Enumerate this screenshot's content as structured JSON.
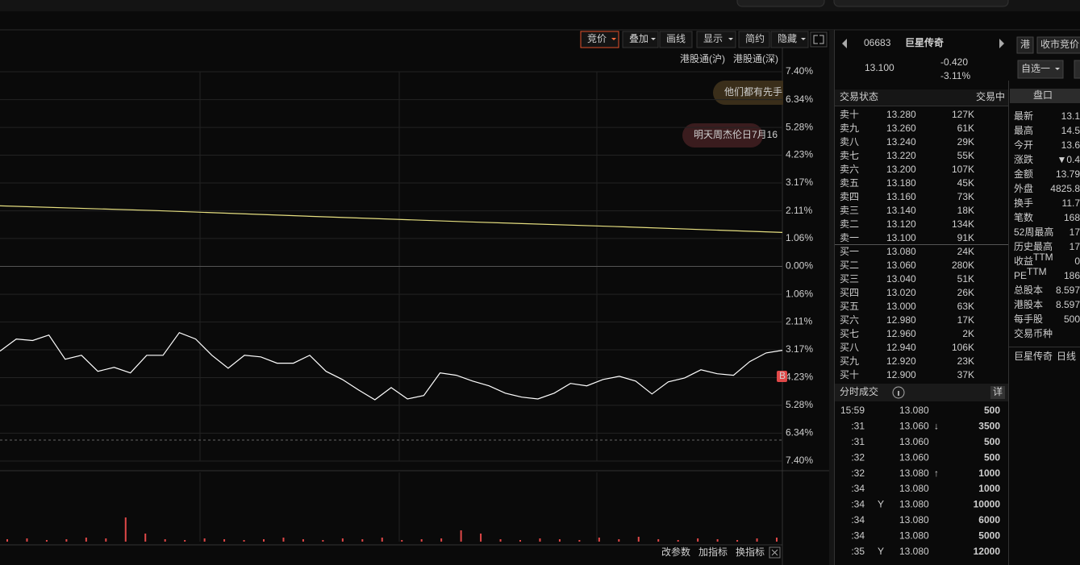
{
  "chart": {
    "toolbar": [
      {
        "label": "竞价",
        "caret": true,
        "active": true
      },
      {
        "label": "叠加",
        "caret": true
      },
      {
        "label": "画线"
      },
      {
        "label": "显示",
        "caret": true
      },
      {
        "label": "简约"
      },
      {
        "label": "隐藏",
        "caret": true
      }
    ],
    "channels": [
      "港股通(沪)",
      "港股通(深)"
    ],
    "notices": [
      {
        "text": "他们都有先手",
        "color": "#e0b060",
        "bg": "#3a2e1a"
      },
      {
        "text": "明天周杰伦日7月16",
        "color": "#ff6b6b",
        "bg": "#3a1c1e"
      }
    ],
    "ylim": [
      -7.4,
      7.4
    ],
    "yticks": [
      {
        "value": 7.4,
        "label": "7.40%"
      },
      {
        "value": 6.34,
        "label": "6.34%"
      },
      {
        "value": 5.28,
        "label": "5.28%"
      },
      {
        "value": 4.23,
        "label": "4.23%"
      },
      {
        "value": 3.17,
        "label": "3.17%"
      },
      {
        "value": 2.11,
        "label": "2.11%"
      },
      {
        "value": 1.06,
        "label": "1.06%"
      },
      {
        "value": 0,
        "label": "0.00%"
      },
      {
        "value": -1.06,
        "label": "1.06%"
      },
      {
        "value": -2.11,
        "label": "2.11%"
      },
      {
        "value": -3.17,
        "label": "3.17%"
      },
      {
        "value": -4.23,
        "label": "4.23%"
      },
      {
        "value": -5.28,
        "label": "5.28%"
      },
      {
        "value": -6.34,
        "label": "6.34%"
      },
      {
        "value": -7.4,
        "label": "7.40%"
      }
    ],
    "price_line": {
      "color": "#ffffff",
      "values": [
        -3.22,
        -2.76,
        -2.82,
        -2.61,
        -3.53,
        -3.38,
        -3.99,
        -3.84,
        -4.05,
        -3.38,
        -3.38,
        -2.52,
        -2.76,
        -3.38,
        -3.87,
        -3.38,
        -3.44,
        -3.68,
        -3.68,
        -3.38,
        -3.99,
        -4.3,
        -4.7,
        -5.07,
        -4.61,
        -5.04,
        -4.91,
        -4.05,
        -4.14,
        -4.36,
        -4.54,
        -4.82,
        -4.97,
        -5.04,
        -4.82,
        -4.45,
        -4.54,
        -4.3,
        -4.18,
        -4.36,
        -4.85,
        -4.39,
        -4.24,
        -3.93,
        -4.08,
        -4.14,
        -3.62,
        -3.29,
        -3.19
      ]
    },
    "avg_line": {
      "color": "#e6df80",
      "values": [
        2.3,
        2.12,
        1.9,
        1.69,
        1.5,
        1.29
      ]
    },
    "marker": "B",
    "volume": {
      "color": "#e04848",
      "ylim": [
        0,
        80
      ],
      "values": [
        3,
        4,
        2,
        3,
        5,
        4,
        30,
        10,
        3,
        2,
        4,
        3,
        2,
        3,
        5,
        3,
        2,
        4,
        3,
        5,
        2,
        3,
        4,
        14,
        10,
        3,
        2,
        4,
        3,
        2,
        5,
        3,
        6,
        3,
        2,
        4,
        3,
        2,
        4,
        5
      ]
    },
    "footer": [
      "改参数",
      "加指标",
      "换指标"
    ]
  },
  "quote": {
    "code": "06683",
    "name": "巨星传奇",
    "price": "13.100",
    "change": "-0.420",
    "change_pct": "-3.11%",
    "market": "港",
    "auction": "收市竞价",
    "watch": "自选一",
    "panel": "盘口"
  },
  "book": {
    "status_label": "交易状态",
    "status": "交易中",
    "asks": [
      [
        "卖十",
        "13.280",
        "127K"
      ],
      [
        "卖九",
        "13.260",
        "61K"
      ],
      [
        "卖八",
        "13.240",
        "29K"
      ],
      [
        "卖七",
        "13.220",
        "55K"
      ],
      [
        "卖六",
        "13.200",
        "107K"
      ],
      [
        "卖五",
        "13.180",
        "45K"
      ],
      [
        "卖四",
        "13.160",
        "73K"
      ],
      [
        "卖三",
        "13.140",
        "18K"
      ],
      [
        "卖二",
        "13.120",
        "134K"
      ],
      [
        "卖一",
        "13.100",
        "91K"
      ]
    ],
    "bids": [
      [
        "买一",
        "13.080",
        "24K"
      ],
      [
        "买二",
        "13.060",
        "280K"
      ],
      [
        "买三",
        "13.040",
        "51K"
      ],
      [
        "买四",
        "13.020",
        "26K"
      ],
      [
        "买五",
        "13.000",
        "63K"
      ],
      [
        "买六",
        "12.980",
        "17K"
      ],
      [
        "买七",
        "12.960",
        "2K"
      ],
      [
        "买八",
        "12.940",
        "106K"
      ],
      [
        "买九",
        "12.920",
        "23K"
      ],
      [
        "买十",
        "12.900",
        "37K"
      ]
    ]
  },
  "trades": {
    "title": "分时成交",
    "detail": "详",
    "rows": [
      {
        "time": "15:59",
        "price": "13.080",
        "volume": "500",
        "color": "#ff4040"
      },
      {
        "time": ":31",
        "price": "13.060",
        "arrow": "↓",
        "volume": "3500",
        "color": "#3fd13f"
      },
      {
        "time": ":31",
        "price": "13.060",
        "volume": "500",
        "color": "#3fd13f"
      },
      {
        "time": ":32",
        "price": "13.060",
        "volume": "500",
        "color": "#3fd13f"
      },
      {
        "time": ":32",
        "price": "13.080",
        "arrow": "↑",
        "volume": "1000",
        "color": "#ff4040"
      },
      {
        "time": ":34",
        "price": "13.080",
        "volume": "1000",
        "color": "#ff4040"
      },
      {
        "time": ":34",
        "flag": "Y",
        "price": "13.080",
        "volume": "10000",
        "color": "#ff4040"
      },
      {
        "time": ":34",
        "price": "13.080",
        "volume": "6000",
        "color": "#ff4040"
      },
      {
        "time": ":34",
        "price": "13.080",
        "volume": "5000",
        "color": "#ff4040"
      },
      {
        "time": ":35",
        "flag": "Y",
        "price": "13.080",
        "volume": "12000",
        "color": "#ff4040"
      }
    ]
  },
  "stats": [
    {
      "label": "最新",
      "value": "13.1",
      "color": "#3fd13f"
    },
    {
      "label": "最高",
      "value": "14.5",
      "color": "#ff4040"
    },
    {
      "label": "今开",
      "value": "13.6",
      "color": "#ff4040"
    },
    {
      "label": "涨跌",
      "value": "▼0.4",
      "color": "#3fd13f"
    },
    {
      "label": "金额",
      "value": "13.79",
      "color": "#4fd0f0"
    },
    {
      "label": "外盘",
      "value": "4825.8",
      "color": "#ff4040"
    },
    {
      "label": "换手",
      "value": "11.7",
      "color": "#dddddd"
    },
    {
      "label": "笔数",
      "value": "168",
      "color": "#dddddd"
    },
    {
      "label": "52周最高",
      "value": "17",
      "color": "#ff4040"
    },
    {
      "label": "历史最高",
      "value": "17",
      "color": "#ff4040"
    },
    {
      "label": "收益",
      "sup": "TTM",
      "value": "0",
      "color": "#dddddd"
    },
    {
      "label": "PE",
      "sup": "TTM",
      "value": "186",
      "color": "#dddddd"
    },
    {
      "label": "总股本",
      "value": "8.597",
      "color": "#dddddd"
    },
    {
      "label": "港股本",
      "value": "8.597",
      "color": "#dddddd"
    },
    {
      "label": "每手股",
      "value": "500",
      "color": "#dddddd"
    },
    {
      "label": "交易币种"
    }
  ],
  "side_footer": [
    "巨星传奇",
    "日线"
  ]
}
